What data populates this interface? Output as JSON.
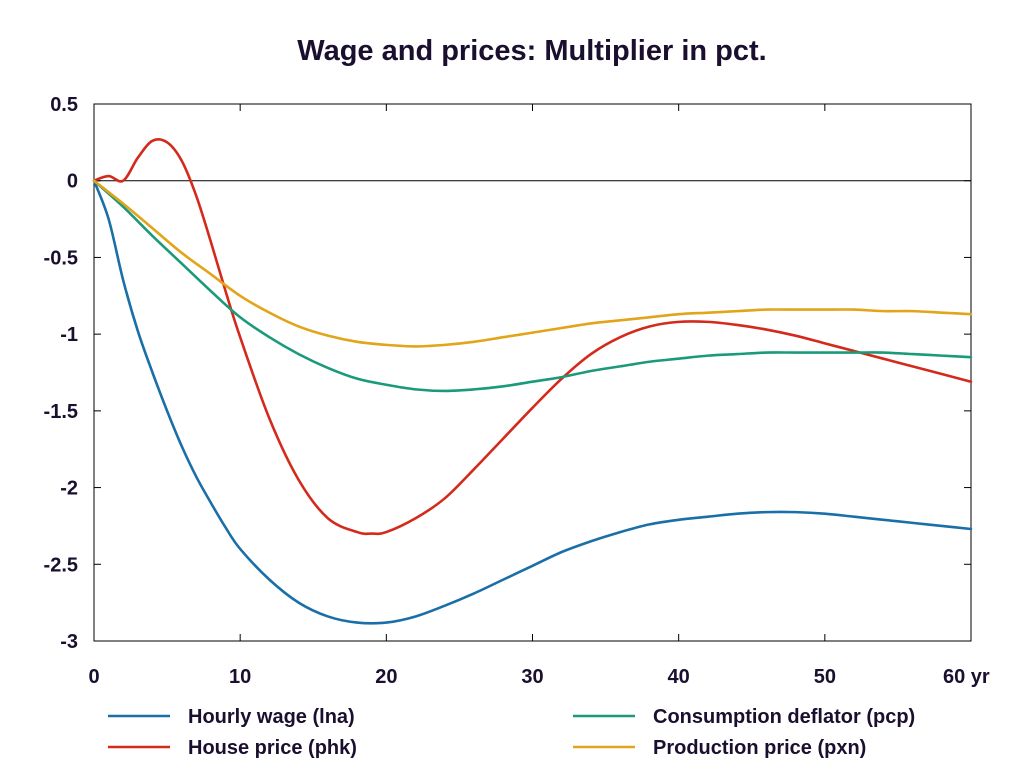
{
  "chart_data": {
    "type": "line",
    "title": "Wage and prices: Multiplier in pct.",
    "xlabel": "",
    "ylabel": "",
    "x_unit": "yr",
    "xlim": [
      0,
      60
    ],
    "ylim": [
      -3,
      0.5
    ],
    "x_ticks": [
      0,
      10,
      20,
      30,
      40,
      50,
      60
    ],
    "x_tick_labels": [
      "0",
      "10",
      "20",
      "30",
      "40",
      "50",
      "60 yr"
    ],
    "y_ticks": [
      0.5,
      0,
      -0.5,
      -1,
      -1.5,
      -2,
      -2.5,
      -3
    ],
    "y_tick_labels": [
      "0.5",
      "0",
      "-0.5",
      "-1",
      "-1.5",
      "-2",
      "-2.5",
      "-3"
    ],
    "zero_line": true,
    "grid": false,
    "legend_position": "bottom",
    "series": [
      {
        "name": "Hourly wage (lna)",
        "color": "#1a6fa8",
        "x": [
          0,
          1,
          2,
          3,
          4,
          5,
          6,
          7,
          8,
          9,
          10,
          12,
          14,
          16,
          18,
          20,
          22,
          24,
          26,
          28,
          30,
          32,
          34,
          36,
          38,
          40,
          42,
          44,
          46,
          48,
          50,
          52,
          54,
          56,
          58,
          60
        ],
        "y": [
          0,
          -0.25,
          -0.65,
          -0.98,
          -1.25,
          -1.5,
          -1.73,
          -1.93,
          -2.1,
          -2.26,
          -2.4,
          -2.6,
          -2.75,
          -2.84,
          -2.88,
          -2.88,
          -2.84,
          -2.77,
          -2.69,
          -2.6,
          -2.51,
          -2.42,
          -2.35,
          -2.29,
          -2.24,
          -2.21,
          -2.19,
          -2.17,
          -2.16,
          -2.16,
          -2.17,
          -2.19,
          -2.21,
          -2.23,
          -2.25,
          -2.27
        ]
      },
      {
        "name": "House price (phk)",
        "color": "#d42a1c",
        "x": [
          0,
          1,
          2,
          3,
          4,
          5,
          6,
          7,
          8,
          9,
          10,
          12,
          14,
          16,
          18,
          19,
          20,
          22,
          24,
          26,
          28,
          30,
          32,
          34,
          36,
          38,
          40,
          42,
          44,
          46,
          48,
          50,
          52,
          54,
          56,
          58,
          60
        ],
        "y": [
          0,
          0.03,
          0.0,
          0.15,
          0.26,
          0.25,
          0.13,
          -0.1,
          -0.4,
          -0.72,
          -1.02,
          -1.55,
          -1.95,
          -2.2,
          -2.29,
          -2.3,
          -2.29,
          -2.2,
          -2.07,
          -1.88,
          -1.68,
          -1.48,
          -1.29,
          -1.13,
          -1.02,
          -0.95,
          -0.92,
          -0.92,
          -0.94,
          -0.97,
          -1.01,
          -1.06,
          -1.11,
          -1.16,
          -1.21,
          -1.26,
          -1.31
        ]
      },
      {
        "name": "Consumption deflator (pcp)",
        "color": "#1a9a7a",
        "x": [
          0,
          2,
          4,
          6,
          8,
          10,
          12,
          14,
          16,
          18,
          20,
          22,
          24,
          26,
          28,
          30,
          32,
          34,
          36,
          38,
          40,
          42,
          44,
          46,
          48,
          50,
          52,
          54,
          56,
          58,
          60
        ],
        "y": [
          0,
          -0.17,
          -0.36,
          -0.54,
          -0.72,
          -0.89,
          -1.02,
          -1.13,
          -1.22,
          -1.29,
          -1.33,
          -1.36,
          -1.37,
          -1.36,
          -1.34,
          -1.31,
          -1.28,
          -1.24,
          -1.21,
          -1.18,
          -1.16,
          -1.14,
          -1.13,
          -1.12,
          -1.12,
          -1.12,
          -1.12,
          -1.12,
          -1.13,
          -1.14,
          -1.15
        ]
      },
      {
        "name": "Production price (pxn)",
        "color": "#e2a418",
        "x": [
          0,
          2,
          4,
          6,
          8,
          10,
          12,
          14,
          16,
          18,
          20,
          22,
          24,
          26,
          28,
          30,
          32,
          34,
          36,
          38,
          40,
          42,
          44,
          46,
          48,
          50,
          52,
          54,
          56,
          58,
          60
        ],
        "y": [
          0,
          -0.15,
          -0.31,
          -0.47,
          -0.61,
          -0.75,
          -0.86,
          -0.95,
          -1.01,
          -1.05,
          -1.07,
          -1.08,
          -1.07,
          -1.05,
          -1.02,
          -0.99,
          -0.96,
          -0.93,
          -0.91,
          -0.89,
          -0.87,
          -0.86,
          -0.85,
          -0.84,
          -0.84,
          -0.84,
          -0.84,
          -0.85,
          -0.85,
          -0.86,
          -0.87
        ]
      }
    ]
  }
}
